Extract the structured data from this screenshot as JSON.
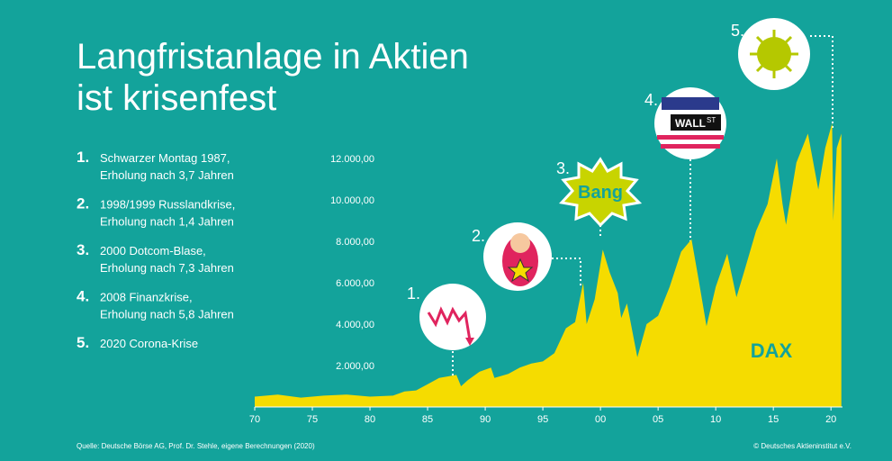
{
  "header": {
    "title_lines": [
      "Langfristanlage in Aktien",
      "ist krisenfest"
    ]
  },
  "crises": [
    {
      "number": "1.",
      "lines": [
        "Schwarzer Montag 1987,",
        "Erholung nach 3,7 Jahren"
      ]
    },
    {
      "number": "2.",
      "lines": [
        "1998/1999 Russlandkrise,",
        "Erholung nach 1,4 Jahren"
      ]
    },
    {
      "number": "3.",
      "lines": [
        "2000 Dotcom-Blase,",
        "Erholung nach 7,3 Jahren"
      ]
    },
    {
      "number": "4.",
      "lines": [
        "2008 Finanzkrise,",
        "Erholung nach 5,8 Jahren"
      ]
    },
    {
      "number": "5.",
      "lines": [
        "2020 Corona-Krise"
      ]
    }
  ],
  "chart_data": {
    "type": "area",
    "annotations": [
      "1.",
      "2.",
      "3.",
      "4.",
      "5."
    ],
    "icon_texts": {
      "bang": "Bang",
      "wall": "WALL",
      "st": "ST"
    },
    "x": [
      1970,
      1972,
      1974,
      1976,
      1978,
      1980,
      1982,
      1983,
      1984,
      1985,
      1986,
      1987.5,
      1987.9,
      1988.5,
      1989.5,
      1990.5,
      1990.8,
      1992,
      1993,
      1994,
      1995,
      1996,
      1997,
      1997.8,
      1998.5,
      1998.8,
      1999.5,
      2000.2,
      2000.8,
      2001.5,
      2001.8,
      2002.3,
      2003.2,
      2004,
      2005,
      2006,
      2007,
      2007.9,
      2008.5,
      2009.2,
      2010,
      2011,
      2011.8,
      2012.5,
      2013.5,
      2014.5,
      2015.3,
      2015.8,
      2016.1,
      2017,
      2018,
      2018.9,
      2019.5,
      2020.1,
      2020.2,
      2020.5,
      2020.9
    ],
    "series": [
      {
        "name": "DAX",
        "color": "#f5dc00",
        "label_color": "#13a39b",
        "values": [
          500,
          600,
          450,
          550,
          600,
          500,
          550,
          750,
          800,
          1100,
          1400,
          1550,
          1000,
          1300,
          1700,
          1900,
          1400,
          1600,
          1900,
          2100,
          2200,
          2600,
          3800,
          4100,
          6000,
          4000,
          5200,
          7600,
          6500,
          5500,
          4300,
          5000,
          2400,
          4000,
          4400,
          5800,
          7500,
          8100,
          6200,
          3900,
          5800,
          7400,
          5300,
          6600,
          8500,
          9800,
          12000,
          9800,
          8800,
          11800,
          13200,
          10500,
          12500,
          13700,
          9000,
          12500,
          13200
        ]
      }
    ],
    "xlim": [
      1970,
      2021
    ],
    "ylim": [
      0,
      14000
    ],
    "xticks": [
      {
        "value": 1970,
        "label": "70"
      },
      {
        "value": 1975,
        "label": "75"
      },
      {
        "value": 1980,
        "label": "80"
      },
      {
        "value": 1985,
        "label": "85"
      },
      {
        "value": 1990,
        "label": "90"
      },
      {
        "value": 1995,
        "label": "95"
      },
      {
        "value": 2000,
        "label": "00"
      },
      {
        "value": 2005,
        "label": "05"
      },
      {
        "value": 2010,
        "label": "10"
      },
      {
        "value": 2015,
        "label": "15"
      },
      {
        "value": 2020,
        "label": "20"
      }
    ],
    "yticks": [
      {
        "value": 2000,
        "label": "2.000,00"
      },
      {
        "value": 4000,
        "label": "4.000,00"
      },
      {
        "value": 6000,
        "label": "6.000,00"
      },
      {
        "value": 8000,
        "label": "8.000,00"
      },
      {
        "value": 10000,
        "label": "10.000,00"
      },
      {
        "value": 12000,
        "label": "12.000,00"
      }
    ]
  },
  "footer": {
    "source": "Quelle: Deutsche Börse AG, Prof. Dr. Stehle, eigene Berechnungen (2020)",
    "copyright": "© Deutsches Aktieninstitut e.V."
  }
}
